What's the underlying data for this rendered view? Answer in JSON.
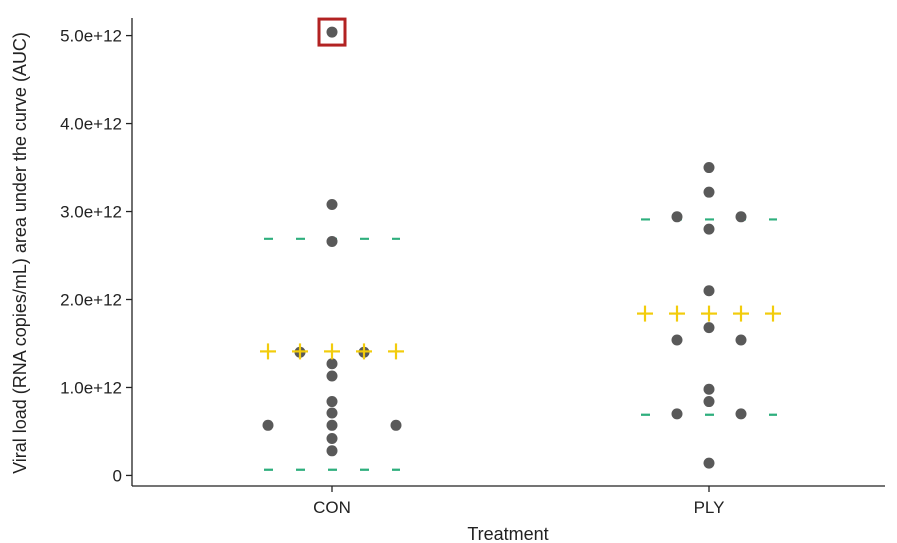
{
  "chart_data": {
    "type": "scatter",
    "xlabel": "Treatment",
    "ylabel": "Viral load (RNA copies/mL) area under the curve (AUC)",
    "categories": [
      "CON",
      "PLY"
    ],
    "ylim": [
      -120000000000.0,
      5200000000000.0
    ],
    "yticks": [
      {
        "value": 0,
        "label": "0"
      },
      {
        "value": 1000000000000.0,
        "label": "1.0e+12"
      },
      {
        "value": 2000000000000.0,
        "label": "2.0e+12"
      },
      {
        "value": 3000000000000.0,
        "label": "3.0e+12"
      },
      {
        "value": 4000000000000.0,
        "label": "4.0e+12"
      },
      {
        "value": 5000000000000.0,
        "label": "5.0e+12"
      }
    ],
    "grid": false,
    "legend": "none",
    "point_color": "#595959",
    "mean_color": "#F2CC0C",
    "band_color": "#2EAF7D",
    "highlight_color": "#B22222",
    "points": [
      {
        "category": "CON",
        "offset": 0,
        "y": 5040000000000.0,
        "highlighted": true
      },
      {
        "category": "CON",
        "offset": 0,
        "y": 3080000000000.0
      },
      {
        "category": "CON",
        "offset": 0,
        "y": 2660000000000.0
      },
      {
        "category": "CON",
        "offset": -1,
        "y": 1400000000000.0
      },
      {
        "category": "CON",
        "offset": 1,
        "y": 1400000000000.0
      },
      {
        "category": "CON",
        "offset": 0,
        "y": 1270000000000.0
      },
      {
        "category": "CON",
        "offset": 0,
        "y": 1130000000000.0
      },
      {
        "category": "CON",
        "offset": 0,
        "y": 840000000000.0
      },
      {
        "category": "CON",
        "offset": 0,
        "y": 710000000000.0
      },
      {
        "category": "CON",
        "offset": -2,
        "y": 570000000000.0
      },
      {
        "category": "CON",
        "offset": 0,
        "y": 570000000000.0
      },
      {
        "category": "CON",
        "offset": 2,
        "y": 570000000000.0
      },
      {
        "category": "CON",
        "offset": 0,
        "y": 420000000000.0
      },
      {
        "category": "CON",
        "offset": 0,
        "y": 280000000000.0
      },
      {
        "category": "PLY",
        "offset": 0,
        "y": 3500000000000.0
      },
      {
        "category": "PLY",
        "offset": 0,
        "y": 3220000000000.0
      },
      {
        "category": "PLY",
        "offset": -1,
        "y": 2940000000000.0
      },
      {
        "category": "PLY",
        "offset": 1,
        "y": 2940000000000.0
      },
      {
        "category": "PLY",
        "offset": 0,
        "y": 2800000000000.0
      },
      {
        "category": "PLY",
        "offset": 0,
        "y": 2100000000000.0
      },
      {
        "category": "PLY",
        "offset": 0,
        "y": 1680000000000.0
      },
      {
        "category": "PLY",
        "offset": -1,
        "y": 1540000000000.0
      },
      {
        "category": "PLY",
        "offset": 1,
        "y": 1540000000000.0
      },
      {
        "category": "PLY",
        "offset": 0,
        "y": 980000000000.0
      },
      {
        "category": "PLY",
        "offset": 0,
        "y": 840000000000.0
      },
      {
        "category": "PLY",
        "offset": -1,
        "y": 700000000000.0
      },
      {
        "category": "PLY",
        "offset": 1,
        "y": 700000000000.0
      },
      {
        "category": "PLY",
        "offset": 0,
        "y": 140000000000.0
      }
    ],
    "means": [
      {
        "category": "CON",
        "y": 1410000000000.0
      },
      {
        "category": "PLY",
        "y": 1840000000000.0
      }
    ],
    "bands": [
      {
        "category": "CON",
        "upper": 2690000000000.0,
        "lower": 65000000000.0
      },
      {
        "category": "PLY",
        "upper": 2910000000000.0,
        "lower": 690000000000.0
      }
    ]
  }
}
